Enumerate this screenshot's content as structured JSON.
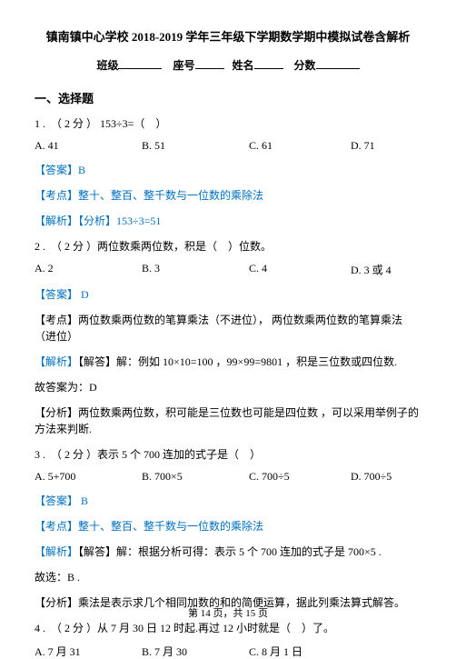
{
  "title": "镇南镇中心学校 2018-2019 学年三年级下学期数学期中模拟试卷含解析",
  "form": {
    "class_label": "班级",
    "seat_label": "座号",
    "name_label": "姓名",
    "score_label": "分数"
  },
  "section_header": "一、选择题",
  "q1": {
    "stem": "1 .  （ 2 分 ） 153÷3=（    ）",
    "a": "A. 41",
    "b": "B. 51",
    "c": "C. 61",
    "d": "D. 71",
    "answer": "【答案】B",
    "point": "【考点】整十、整百、整千数与一位数的乘除法",
    "analysis": "【解析】【分析】153÷3=51"
  },
  "q2": {
    "stem": "2 .  （ 2 分 ）两位数乘两位数，积是（    ）位数。",
    "a": "A. 2",
    "b": "B. 3",
    "c": "C. 4",
    "d": "D. 3 或 4",
    "answer": "【答案】 D",
    "point": "【考点】两位数乘两位数的笔算乘法（不进位）， 两位数乘两位数的笔算乘法（进位）",
    "analysis_label": "【解析】",
    "analysis_1": "【解答】解：例如 10×10=100 ，99×99=9801 ，积是三位数或四位数.",
    "analysis_2": "故答案为：D",
    "analysis_3": "【分析】两位数乘两位数，积可能是三位数也可能是四位数 ，可以采用举例子的方法来判断."
  },
  "q3": {
    "stem": "3 .  （ 2 分 ）表示 5 个 700 连加的式子是（    ）",
    "a": "A. 5+700",
    "b": "B. 700×5",
    "c": "C. 700÷5",
    "d": "D. 700÷5",
    "answer": "【答案】 B",
    "point": "【考点】整十、整百、整千数与一位数的乘除法",
    "analysis_label": "【解析】",
    "analysis_1": "【解答】解：根据分析可得：表示 5 个 700 连加的式子是 700×5 .",
    "analysis_2": "故选：B .",
    "analysis_3": "【分析】乘法是表示求几个相同加数的和的简便运算，据此列乘法算式解答。"
  },
  "q4": {
    "stem": "4 .  （ 2 分 ）从 7 月 30 日 12 时起.再过 12 小时就是（    ）了。",
    "a": "A. 7 月 31",
    "b": "B. 7 月 30",
    "c": "C. 8 月 1 日"
  },
  "footer": {
    "text_prefix": "第 ",
    "page_current": "14",
    "text_mid": " 页，共 ",
    "page_total": "15",
    "text_suffix": " 页"
  }
}
